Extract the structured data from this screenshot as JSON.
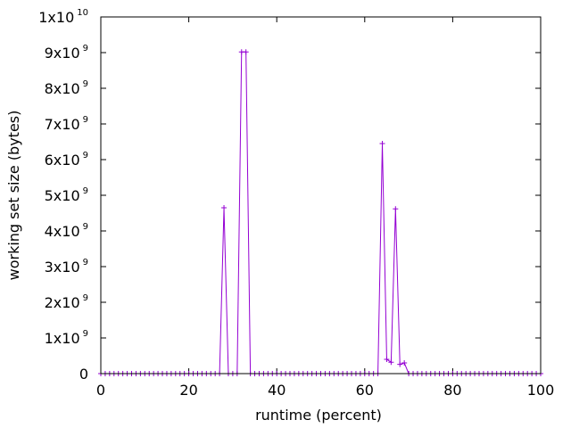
{
  "chart_data": {
    "type": "line",
    "xlabel": "runtime (percent)",
    "ylabel": "working set size (bytes)",
    "xlim": [
      0,
      100
    ],
    "ylim": [
      0,
      10000000000
    ],
    "grid": false,
    "legend": "none",
    "x_ticks": [
      {
        "value": 0,
        "label": "0"
      },
      {
        "value": 20,
        "label": "20"
      },
      {
        "value": 40,
        "label": "40"
      },
      {
        "value": 60,
        "label": "60"
      },
      {
        "value": 80,
        "label": "80"
      },
      {
        "value": 100,
        "label": "100"
      }
    ],
    "y_ticks": [
      {
        "value": 0,
        "mantissa": "0",
        "exponent": ""
      },
      {
        "value": 1000000000,
        "mantissa": "1x10",
        "exponent": "9"
      },
      {
        "value": 2000000000,
        "mantissa": "2x10",
        "exponent": "9"
      },
      {
        "value": 3000000000,
        "mantissa": "3x10",
        "exponent": "9"
      },
      {
        "value": 4000000000,
        "mantissa": "4x10",
        "exponent": "9"
      },
      {
        "value": 5000000000,
        "mantissa": "5x10",
        "exponent": "9"
      },
      {
        "value": 6000000000,
        "mantissa": "6x10",
        "exponent": "9"
      },
      {
        "value": 7000000000,
        "mantissa": "7x10",
        "exponent": "9"
      },
      {
        "value": 8000000000,
        "mantissa": "8x10",
        "exponent": "9"
      },
      {
        "value": 9000000000,
        "mantissa": "9x10",
        "exponent": "9"
      },
      {
        "value": 10000000000,
        "mantissa": "1x10",
        "exponent": "10"
      }
    ],
    "series": [
      {
        "color": "#9400d3",
        "marker": "plus",
        "points": [
          [
            0,
            0
          ],
          [
            1,
            0
          ],
          [
            2,
            0
          ],
          [
            3,
            0
          ],
          [
            4,
            0
          ],
          [
            5,
            0
          ],
          [
            6,
            0
          ],
          [
            7,
            0
          ],
          [
            8,
            0
          ],
          [
            9,
            0
          ],
          [
            10,
            0
          ],
          [
            11,
            0
          ],
          [
            12,
            0
          ],
          [
            13,
            0
          ],
          [
            14,
            0
          ],
          [
            15,
            0
          ],
          [
            16,
            0
          ],
          [
            17,
            0
          ],
          [
            18,
            0
          ],
          [
            19,
            0
          ],
          [
            20,
            0
          ],
          [
            21,
            0
          ],
          [
            22,
            0
          ],
          [
            23,
            0
          ],
          [
            24,
            0
          ],
          [
            25,
            0
          ],
          [
            26,
            0
          ],
          [
            27,
            0
          ],
          [
            28,
            4650000000
          ],
          [
            29,
            0
          ],
          [
            30,
            0
          ],
          [
            31,
            0
          ],
          [
            32,
            9020000000
          ],
          [
            33,
            9020000000
          ],
          [
            34,
            0
          ],
          [
            35,
            0
          ],
          [
            36,
            0
          ],
          [
            37,
            0
          ],
          [
            38,
            0
          ],
          [
            39,
            0
          ],
          [
            40,
            0
          ],
          [
            41,
            0
          ],
          [
            42,
            0
          ],
          [
            43,
            0
          ],
          [
            44,
            0
          ],
          [
            45,
            0
          ],
          [
            46,
            0
          ],
          [
            47,
            0
          ],
          [
            48,
            0
          ],
          [
            49,
            0
          ],
          [
            50,
            0
          ],
          [
            51,
            0
          ],
          [
            52,
            0
          ],
          [
            53,
            0
          ],
          [
            54,
            0
          ],
          [
            55,
            0
          ],
          [
            56,
            0
          ],
          [
            57,
            0
          ],
          [
            58,
            0
          ],
          [
            59,
            0
          ],
          [
            60,
            0
          ],
          [
            61,
            0
          ],
          [
            62,
            0
          ],
          [
            63,
            0
          ],
          [
            64,
            6450000000
          ],
          [
            65,
            400000000
          ],
          [
            66,
            320000000
          ],
          [
            67,
            4620000000
          ],
          [
            68,
            260000000
          ],
          [
            69,
            300000000
          ],
          [
            70,
            0
          ],
          [
            71,
            0
          ],
          [
            72,
            0
          ],
          [
            73,
            0
          ],
          [
            74,
            0
          ],
          [
            75,
            0
          ],
          [
            76,
            0
          ],
          [
            77,
            0
          ],
          [
            78,
            0
          ],
          [
            79,
            0
          ],
          [
            80,
            0
          ],
          [
            81,
            0
          ],
          [
            82,
            0
          ],
          [
            83,
            0
          ],
          [
            84,
            0
          ],
          [
            85,
            0
          ],
          [
            86,
            0
          ],
          [
            87,
            0
          ],
          [
            88,
            0
          ],
          [
            89,
            0
          ],
          [
            90,
            0
          ],
          [
            91,
            0
          ],
          [
            92,
            0
          ],
          [
            93,
            0
          ],
          [
            94,
            0
          ],
          [
            95,
            0
          ],
          [
            96,
            0
          ],
          [
            97,
            0
          ],
          [
            98,
            0
          ],
          [
            99,
            0
          ],
          [
            100,
            0
          ]
        ]
      }
    ]
  }
}
